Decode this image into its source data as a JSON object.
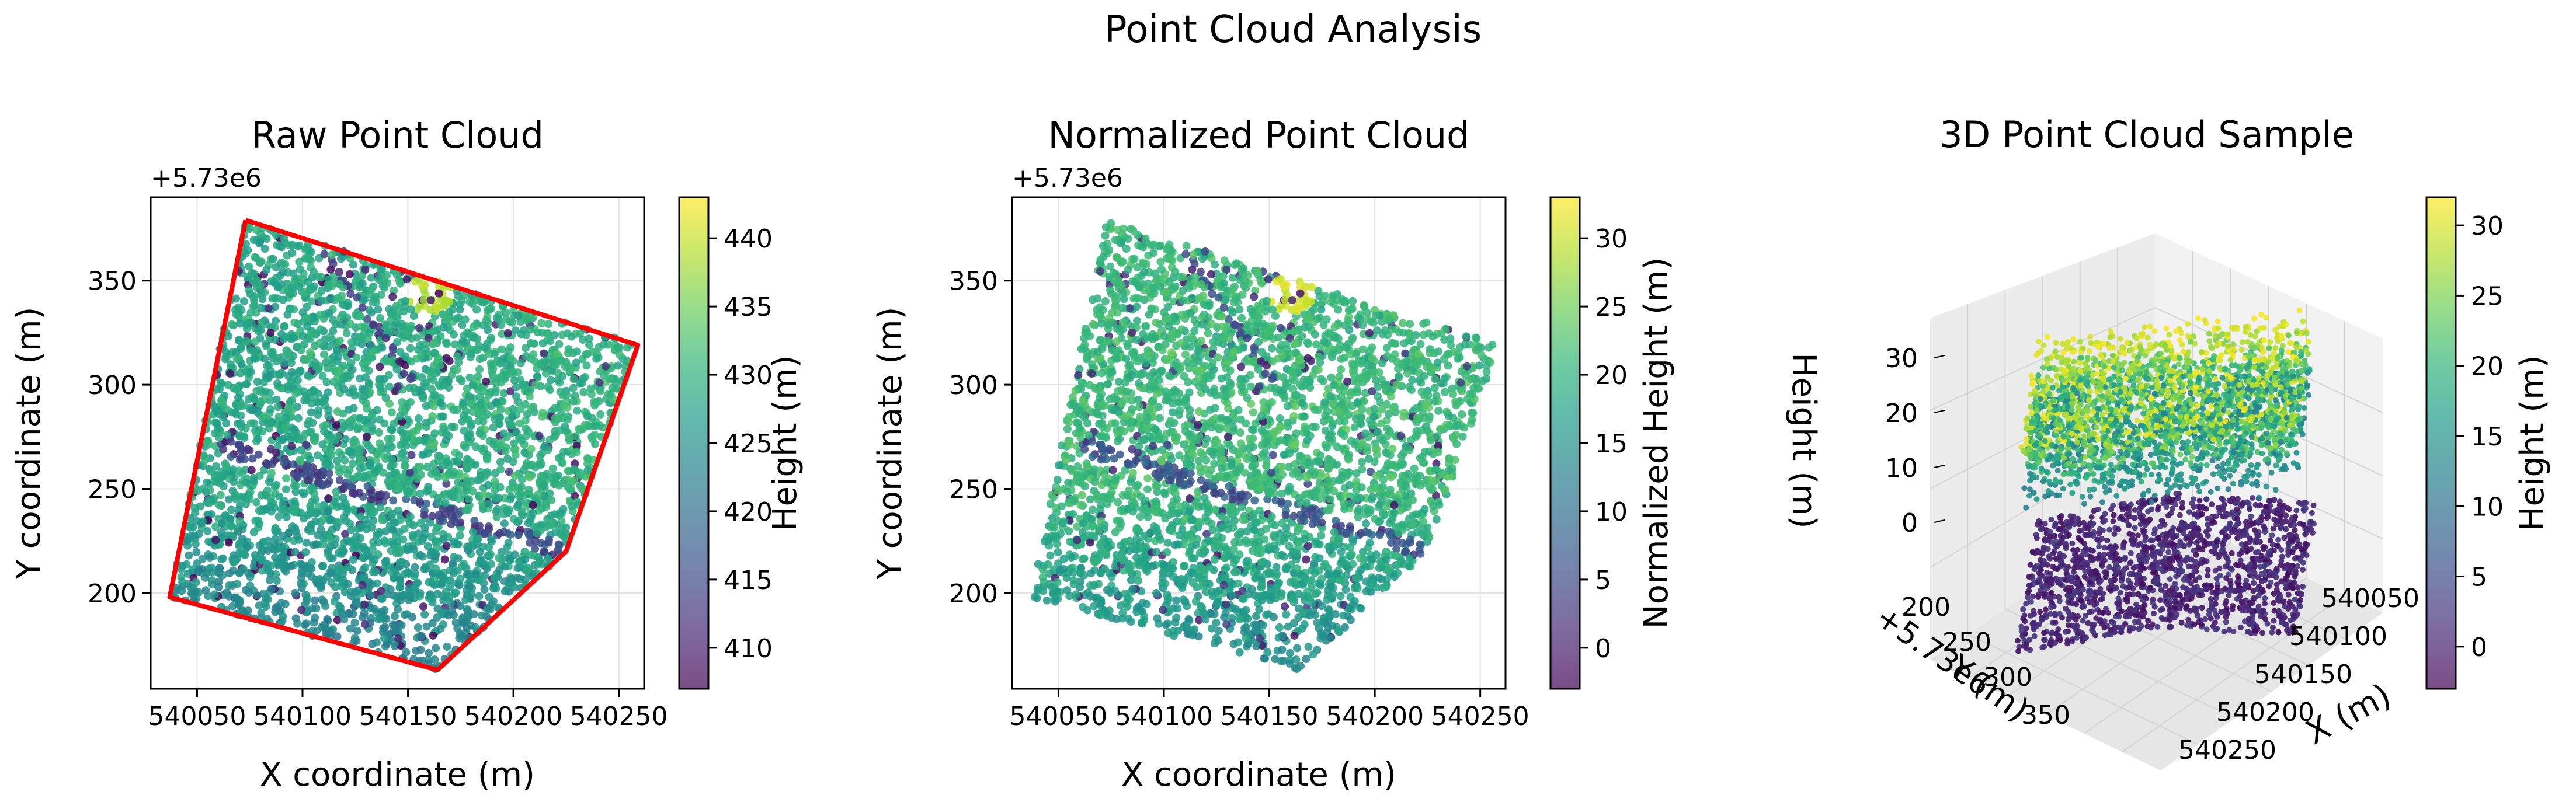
{
  "figure": {
    "suptitle": "Point Cloud Analysis"
  },
  "colormap": [
    "#440154",
    "#482878",
    "#3e4989",
    "#31688e",
    "#26828e",
    "#1f9e89",
    "#35b779",
    "#6ece58",
    "#b5de2b",
    "#fde725"
  ],
  "boundary_color": "#ff0000",
  "chart_data": [
    {
      "type": "scatter",
      "title": "Raw Point Cloud",
      "xlabel": "X coordinate (m)",
      "ylabel": "Y coordinate (m)",
      "y_offset_label": "+5.73e6",
      "xlim": [
        540028,
        540262
      ],
      "ylim": [
        154,
        390
      ],
      "xticks": [
        540050,
        540100,
        540150,
        540200,
        540250
      ],
      "xticklabels": [
        "540050",
        "540100",
        "540150",
        "540200",
        "540250"
      ],
      "yticks": [
        200,
        250,
        300,
        350
      ],
      "yticklabels": [
        "200",
        "250",
        "300",
        "350"
      ],
      "grid": true,
      "colorbar": {
        "label": "Height (m)",
        "range": [
          407,
          443
        ],
        "ticks": [
          410,
          415,
          420,
          425,
          430,
          435,
          440
        ],
        "ticklabels": [
          "410",
          "415",
          "420",
          "425",
          "430",
          "435",
          "440"
        ]
      },
      "boundary": [
        [
          540073,
          379
        ],
        [
          540259,
          319
        ],
        [
          540225,
          220
        ],
        [
          540164,
          163
        ],
        [
          540037,
          198
        ],
        [
          540073,
          379
        ]
      ],
      "notes": [
        "bright high area near (540160, 345)",
        "dark diagonal channel from (540075, 266) to (540225, 220)"
      ]
    },
    {
      "type": "scatter",
      "title": "Normalized Point Cloud",
      "xlabel": "X coordinate (m)",
      "ylabel": "Y coordinate (m)",
      "y_offset_label": "+5.73e6",
      "xlim": [
        540028,
        540262
      ],
      "ylim": [
        154,
        390
      ],
      "xticks": [
        540050,
        540100,
        540150,
        540200,
        540250
      ],
      "xticklabels": [
        "540050",
        "540100",
        "540150",
        "540200",
        "540250"
      ],
      "yticks": [
        200,
        250,
        300,
        350
      ],
      "yticklabels": [
        "200",
        "250",
        "300",
        "350"
      ],
      "grid": true,
      "colorbar": {
        "label": "Normalized Height (m)",
        "range": [
          -3,
          33
        ],
        "ticks": [
          0,
          5,
          10,
          15,
          20,
          25,
          30
        ],
        "ticklabels": [
          "0",
          "5",
          "10",
          "15",
          "20",
          "25",
          "30"
        ]
      }
    },
    {
      "type": "scatter",
      "title": "3D Point Cloud Sample",
      "xlabel": "X (m)",
      "ylabel": "Y (m)",
      "zlabel": "Height (m)",
      "y_offset_label": "+5.73e6",
      "xticks": [
        540050,
        540100,
        540150,
        540200,
        540250
      ],
      "xticklabels": [
        "540050",
        "540100",
        "540150",
        "540200",
        "540250"
      ],
      "yticks": [
        200,
        250,
        300,
        350
      ],
      "yticklabels": [
        "200",
        "250",
        "300",
        "350"
      ],
      "zticks": [
        0,
        10,
        20,
        30
      ],
      "zticklabels": [
        "0",
        "10",
        "20",
        "30"
      ],
      "zlim": [
        -3,
        35
      ],
      "colorbar": {
        "label": "Height (m)",
        "range": [
          -3,
          32
        ],
        "ticks": [
          0,
          5,
          10,
          15,
          20,
          25,
          30
        ],
        "ticklabels": [
          "0",
          "5",
          "10",
          "15",
          "20",
          "25",
          "30"
        ]
      }
    }
  ]
}
